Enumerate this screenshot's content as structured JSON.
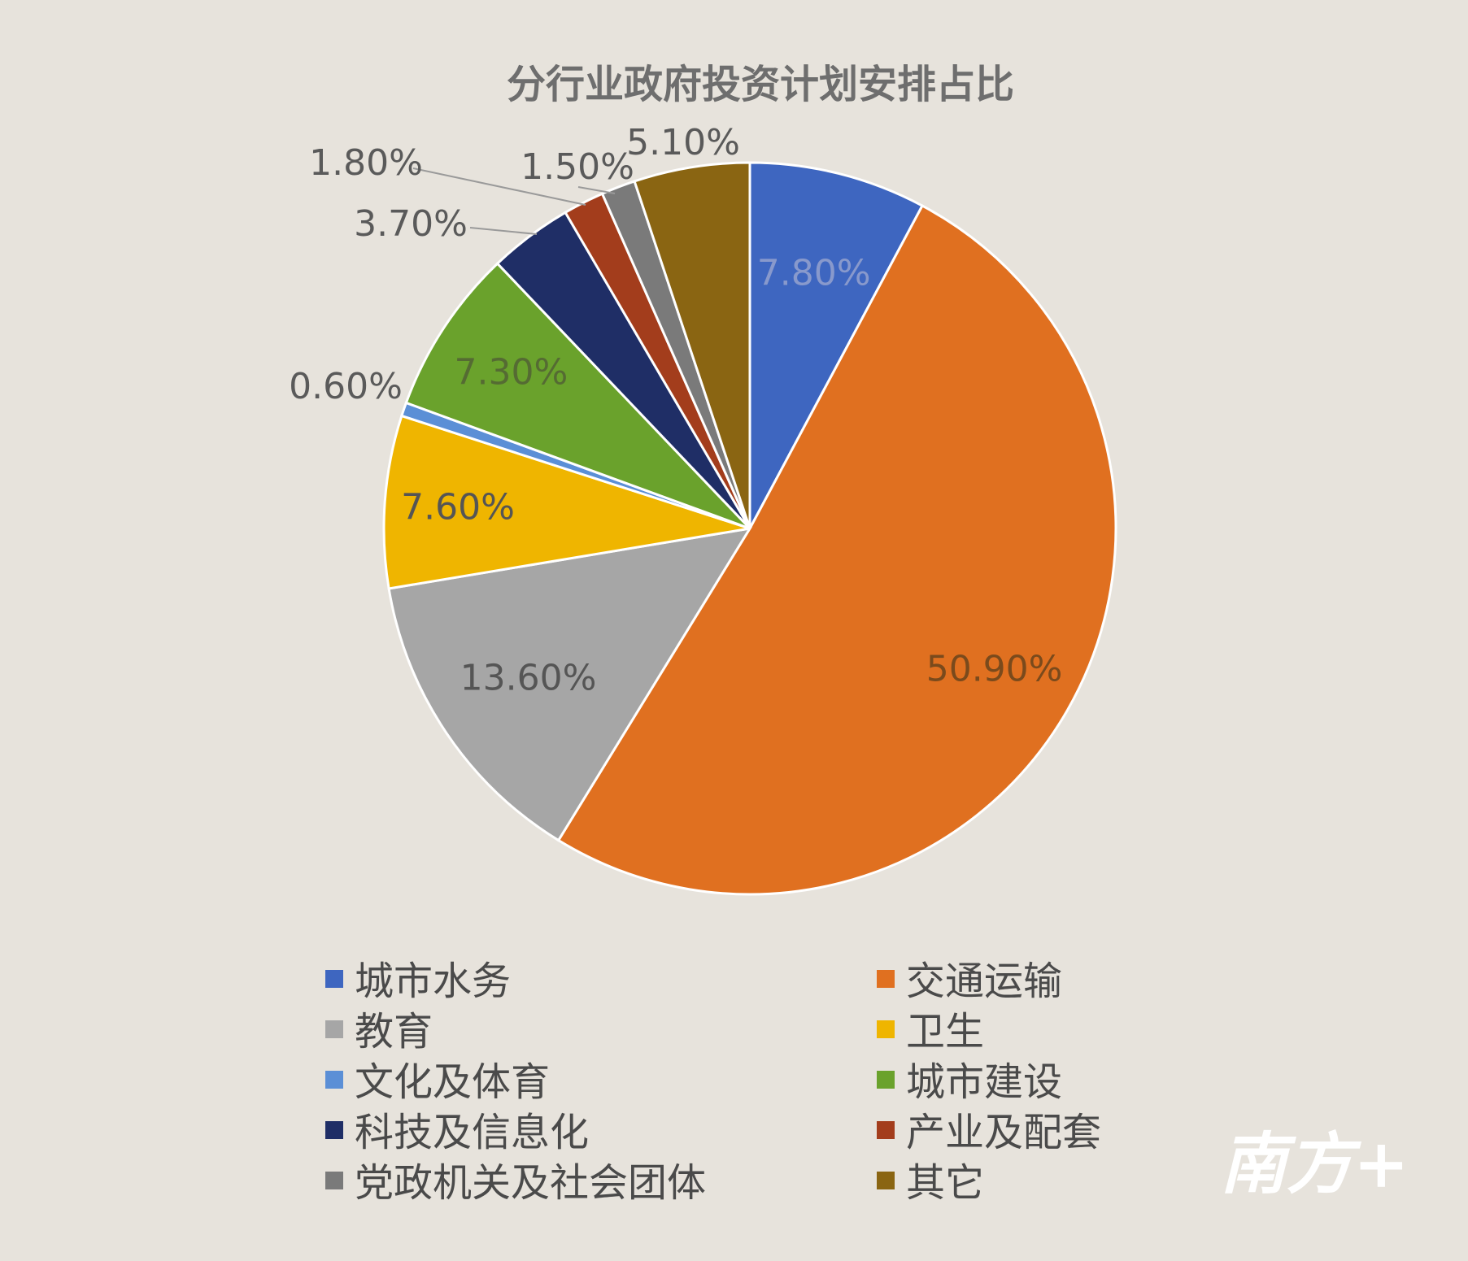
{
  "chart_data": {
    "type": "pie",
    "title": "分行业政府投资计划安排占比",
    "slices": [
      {
        "name": "城市水务",
        "value": 7.8,
        "label": "7.80%",
        "color": "#3e66c0"
      },
      {
        "name": "交通运输",
        "value": 50.9,
        "label": "50.90%",
        "color": "#e07020"
      },
      {
        "name": "教育",
        "value": 13.6,
        "label": "13.60%",
        "color": "#a6a6a6"
      },
      {
        "name": "卫生",
        "value": 7.6,
        "label": "7.60%",
        "color": "#efb500"
      },
      {
        "name": "文化及体育",
        "value": 0.6,
        "label": "0.60%",
        "color": "#5b8fd6"
      },
      {
        "name": "城市建设",
        "value": 7.3,
        "label": "7.30%",
        "color": "#6aa22c"
      },
      {
        "name": "科技及信息化",
        "value": 3.7,
        "label": "3.70%",
        "color": "#1f2e66"
      },
      {
        "name": "产业及配套",
        "value": 1.8,
        "label": "1.80%",
        "color": "#a33d1c"
      },
      {
        "name": "党政机关及社会团体",
        "value": 1.5,
        "label": "1.50%",
        "color": "#7a7a7a"
      },
      {
        "name": "其它",
        "value": 5.1,
        "label": "5.10%",
        "color": "#8a6512"
      }
    ],
    "legend_order": [
      "城市水务",
      "交通运输",
      "教育",
      "卫生",
      "文化及体育",
      "城市建设",
      "科技及信息化",
      "产业及配套",
      "党政机关及社会团体",
      "其它"
    ],
    "legend_placement": "bottom"
  },
  "watermark": {
    "text": "南方+"
  }
}
